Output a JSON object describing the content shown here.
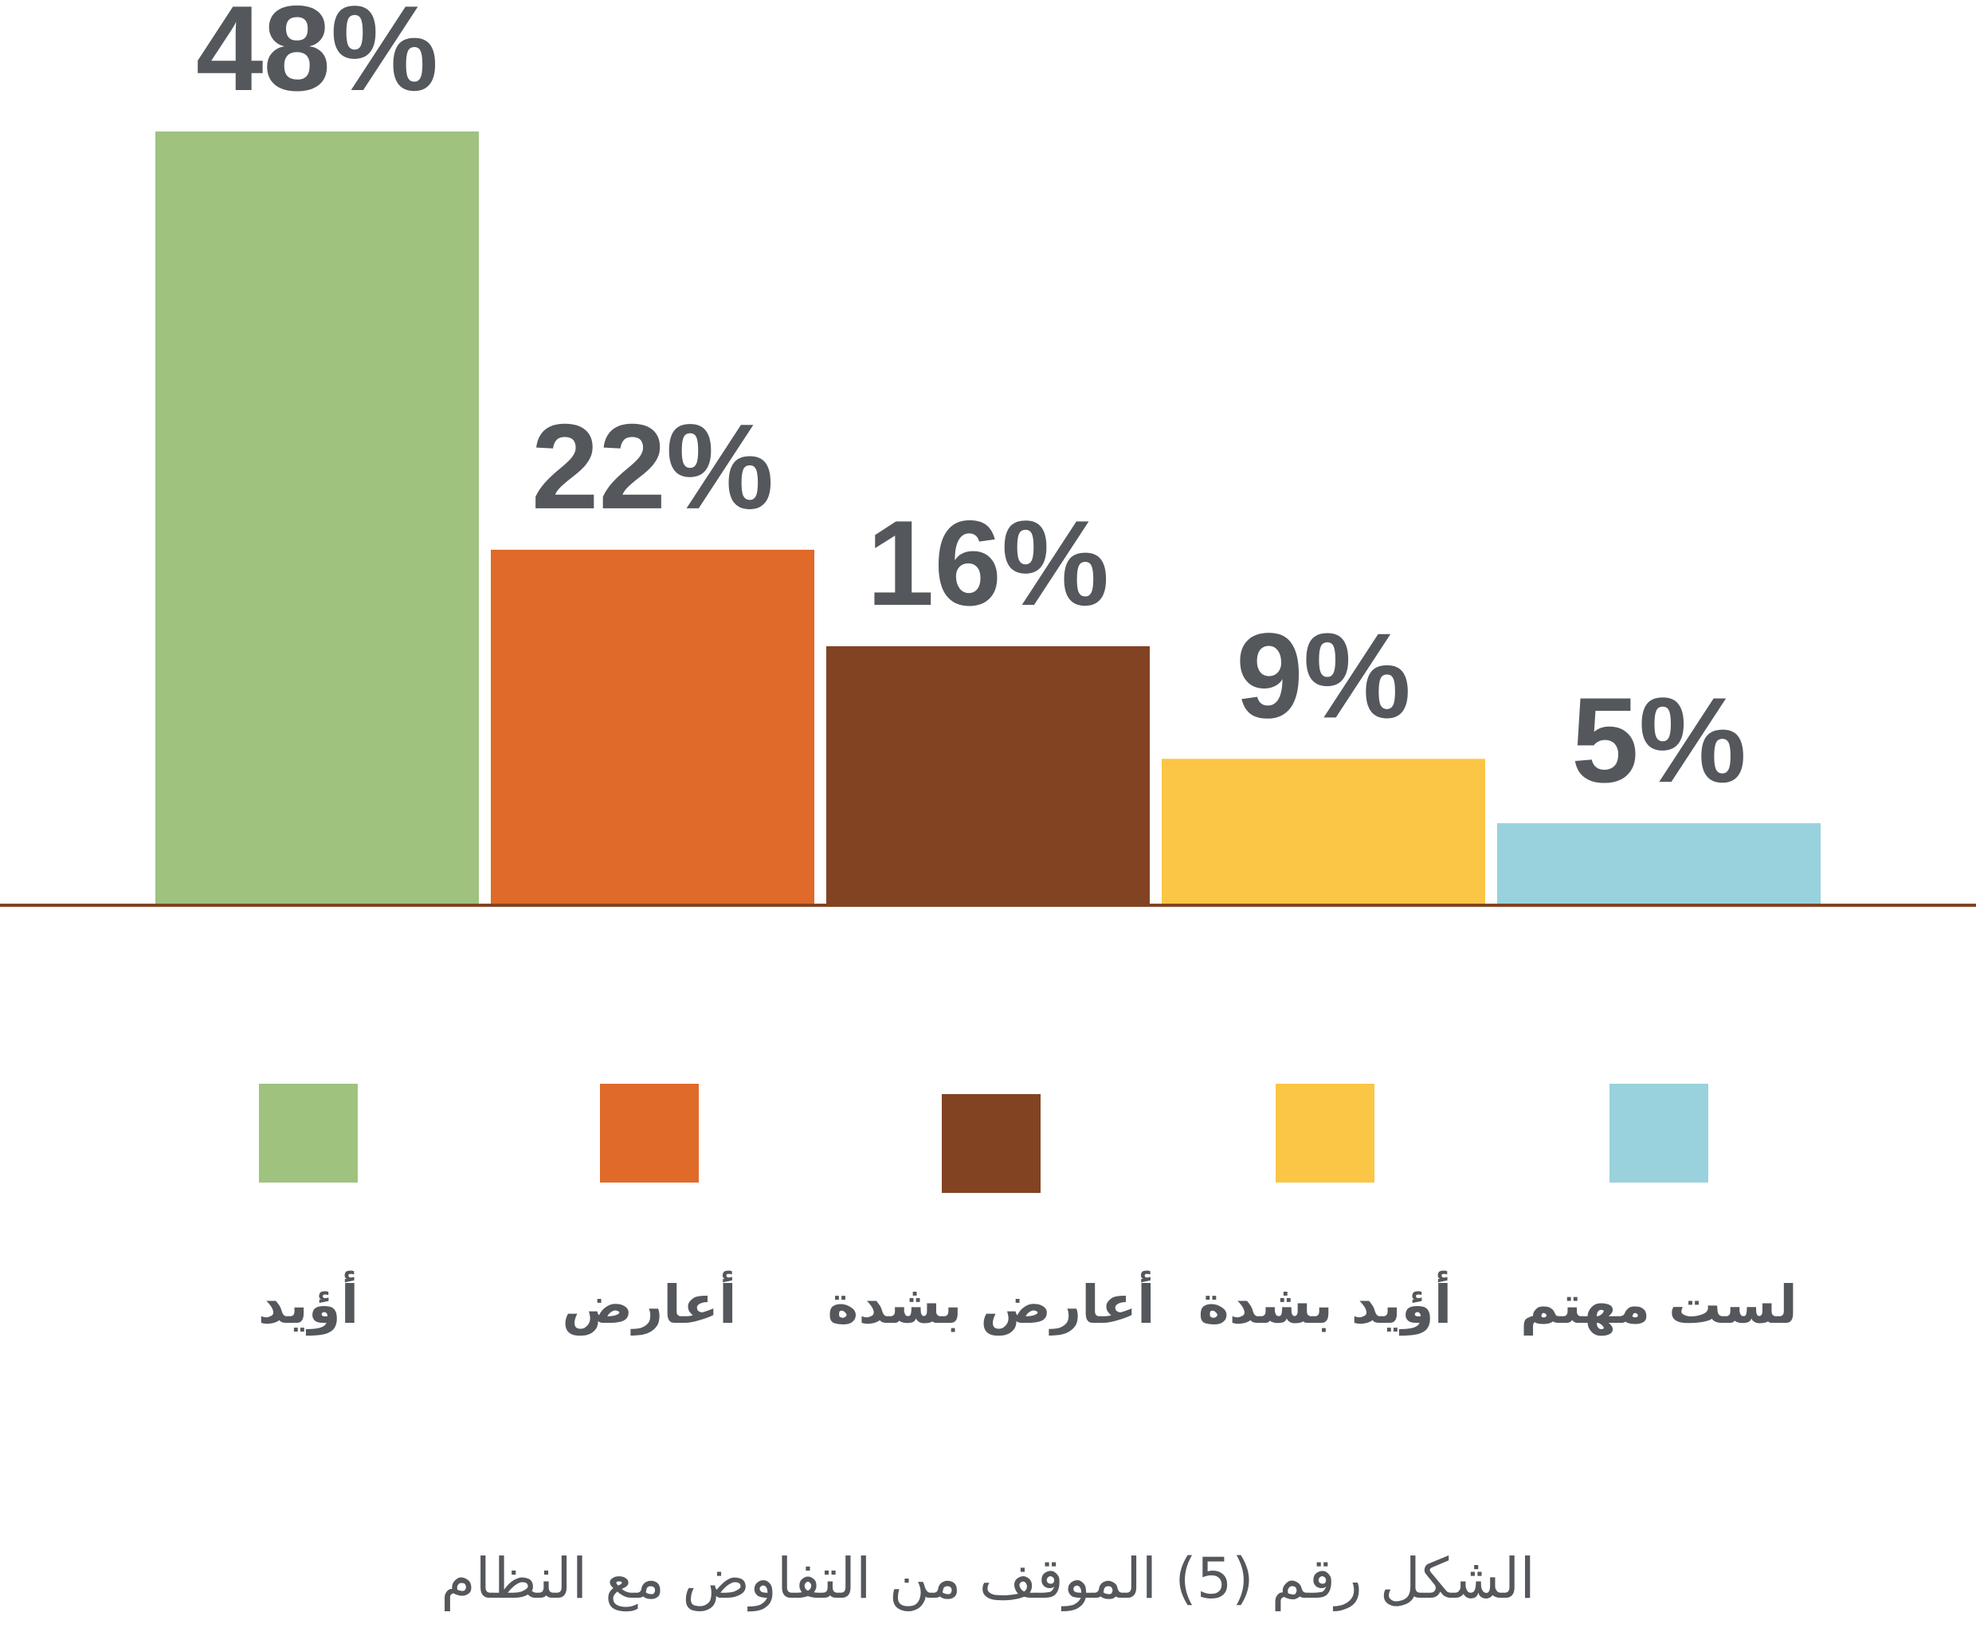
{
  "chart_data": {
    "type": "bar",
    "categories": [
      "أؤيد",
      "أعارض",
      "أعارض بشدة",
      "أؤيد بشدة",
      "لست مهتم"
    ],
    "values": [
      48,
      22,
      16,
      9,
      5
    ],
    "value_labels": [
      "48%",
      "22%",
      "16%",
      "9%",
      "5%"
    ],
    "unit": "%",
    "ylim": [
      0,
      48
    ],
    "grid": false,
    "legend_placement": "bottom",
    "colors": [
      "#9fc27f",
      "#df6a29",
      "#824322",
      "#fbc645",
      "#99d2dc"
    ],
    "axis_color": "#824322",
    "caption": "الشكل رقم (5) الموقف من التفاوض مع النظام"
  }
}
